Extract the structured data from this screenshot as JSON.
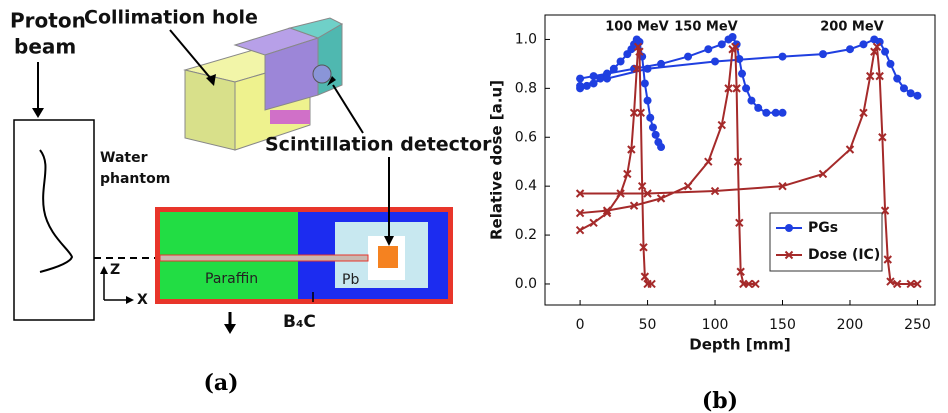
{
  "diagram": {
    "proton_beam": [
      "Proton",
      "beam"
    ],
    "collimation_hole": "Collimation hole",
    "scintillation_detector": "Scintillation detector",
    "water_phantom": [
      "Water",
      "phantom"
    ],
    "paraffin": "Paraffin",
    "pb": "Pb",
    "b4c": "B₄C",
    "axis_z": "Z",
    "axis_x": "X",
    "caption_a": "(a)",
    "caption_b": "(b)"
  },
  "chart_data": {
    "type": "line",
    "xlabel": "Depth [mm]",
    "ylabel": "Relative dose [a.u]",
    "annotations": [
      "100 MeV",
      "150 MeV",
      "200 MeV"
    ],
    "xlim": [
      -26,
      263
    ],
    "ylim": [
      -0.086,
      1.1
    ],
    "xticks": [
      0,
      50,
      100,
      150,
      200,
      250
    ],
    "yticks": [
      {
        "value": 0,
        "label": "0.0"
      },
      0.2,
      0.4,
      0.6,
      0.8,
      {
        "value": 1,
        "label": "1.0"
      }
    ],
    "legend": "lower right",
    "series": [
      {
        "name": "PGs",
        "color": "#1f3fe0",
        "marker": "dot",
        "x": [
          0,
          5,
          10,
          15,
          20,
          25,
          30,
          35,
          38,
          40,
          42,
          44,
          46,
          48,
          50,
          52,
          54,
          56,
          58,
          60,
          null,
          0,
          10,
          20,
          40,
          60,
          80,
          95,
          105,
          110,
          113,
          116,
          118,
          120,
          123,
          127,
          132,
          138,
          145,
          150,
          null,
          0,
          20,
          50,
          100,
          150,
          180,
          200,
          210,
          218,
          222,
          226,
          230,
          235,
          240,
          245,
          250
        ],
        "values": [
          0.8,
          0.81,
          0.82,
          0.84,
          0.86,
          0.88,
          0.91,
          0.94,
          0.96,
          0.98,
          1.0,
          0.99,
          0.93,
          0.82,
          0.75,
          0.68,
          0.64,
          0.61,
          0.58,
          0.56,
          null,
          0.84,
          0.85,
          0.86,
          0.88,
          0.9,
          0.93,
          0.96,
          0.98,
          1.0,
          1.01,
          0.98,
          0.92,
          0.86,
          0.8,
          0.75,
          0.72,
          0.7,
          0.7,
          0.7,
          null,
          0.81,
          0.84,
          0.88,
          0.91,
          0.93,
          0.94,
          0.96,
          0.98,
          1.0,
          0.99,
          0.95,
          0.9,
          0.84,
          0.8,
          0.78,
          0.77
        ]
      },
      {
        "name": "Dose (IC)",
        "color": "#a52a2a",
        "marker": "x",
        "x": [
          0,
          10,
          20,
          30,
          35,
          38,
          40,
          42,
          43,
          44,
          45,
          46,
          47,
          48,
          50,
          53,
          null,
          0,
          20,
          40,
          60,
          80,
          95,
          105,
          110,
          113,
          115,
          116,
          117,
          118,
          119,
          121,
          125,
          130,
          null,
          0,
          50,
          100,
          150,
          180,
          200,
          210,
          215,
          218,
          220,
          222,
          224,
          226,
          228,
          230,
          235,
          245,
          250
        ],
        "values": [
          0.22,
          0.25,
          0.29,
          0.37,
          0.45,
          0.55,
          0.7,
          0.88,
          0.97,
          0.95,
          0.7,
          0.4,
          0.15,
          0.03,
          0,
          0,
          null,
          0.29,
          0.3,
          0.32,
          0.35,
          0.4,
          0.5,
          0.65,
          0.8,
          0.96,
          0.97,
          0.8,
          0.5,
          0.25,
          0.05,
          0,
          0,
          0,
          null,
          0.37,
          0.37,
          0.38,
          0.4,
          0.45,
          0.55,
          0.7,
          0.85,
          0.95,
          0.97,
          0.85,
          0.6,
          0.3,
          0.1,
          0.01,
          0,
          0,
          0
        ]
      }
    ]
  }
}
